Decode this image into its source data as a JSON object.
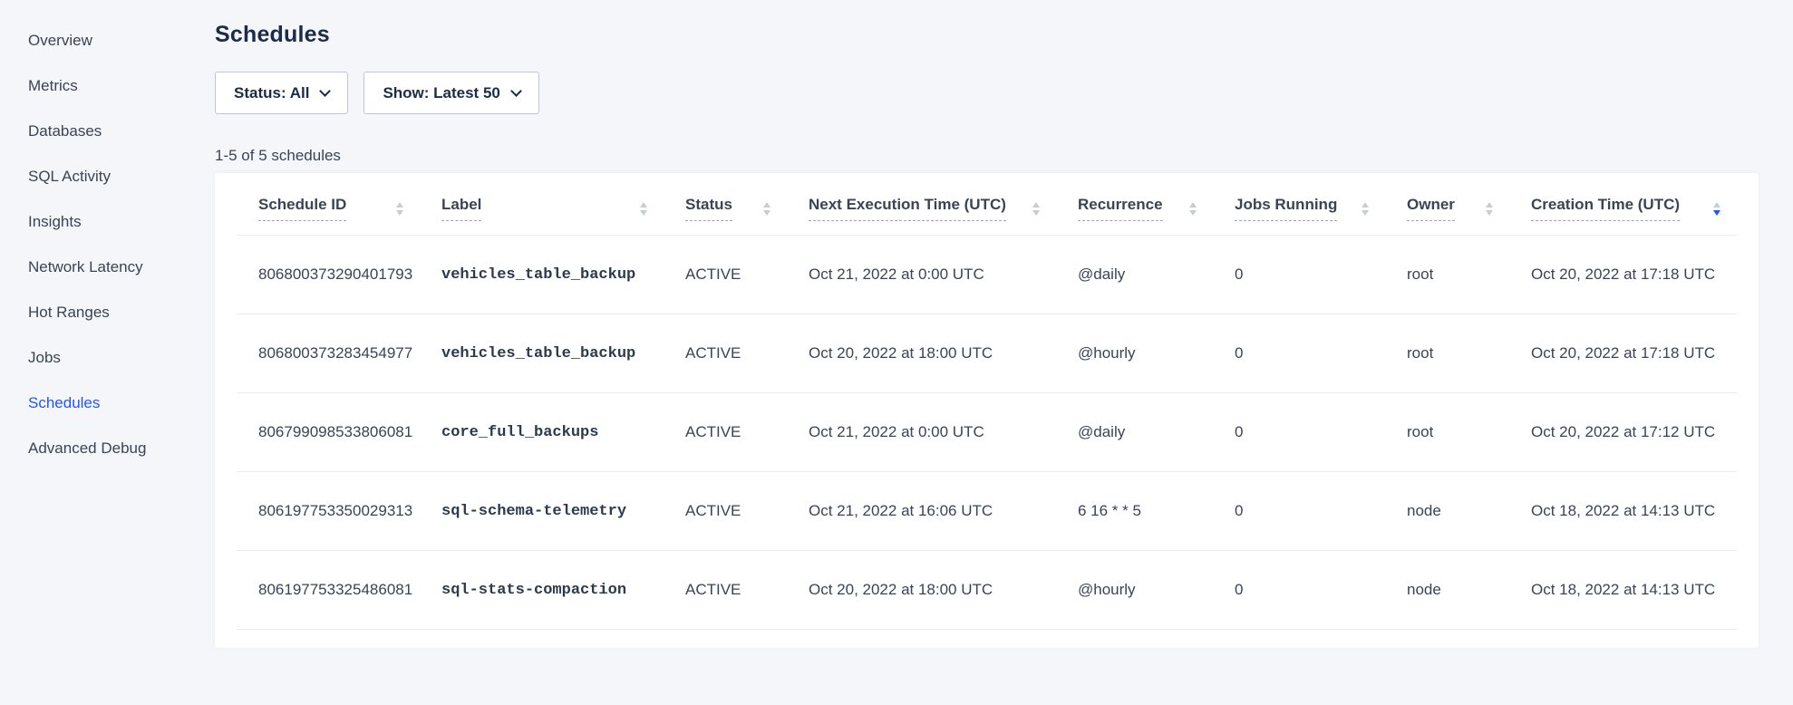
{
  "colors": {
    "accent_blue": "#2155ff",
    "background": "#f4f6fa",
    "panel": "#ffffff"
  },
  "sidebar": {
    "items": [
      {
        "label": "Overview",
        "active": false
      },
      {
        "label": "Metrics",
        "active": false
      },
      {
        "label": "Databases",
        "active": false
      },
      {
        "label": "SQL Activity",
        "active": false
      },
      {
        "label": "Insights",
        "active": false
      },
      {
        "label": "Network Latency",
        "active": false
      },
      {
        "label": "Hot Ranges",
        "active": false
      },
      {
        "label": "Jobs",
        "active": false
      },
      {
        "label": "Schedules",
        "active": true
      },
      {
        "label": "Advanced Debug",
        "active": false
      }
    ]
  },
  "page": {
    "title": "Schedules",
    "results_count": "1-5 of 5 schedules"
  },
  "filters": {
    "status_dropdown": "Status: All",
    "show_dropdown": "Show: Latest 50"
  },
  "table": {
    "columns": [
      {
        "label": "Schedule ID",
        "sort": "none"
      },
      {
        "label": "Label",
        "sort": "none"
      },
      {
        "label": "Status",
        "sort": "none"
      },
      {
        "label": "Next Execution Time (UTC)",
        "sort": "none"
      },
      {
        "label": "Recurrence",
        "sort": "none"
      },
      {
        "label": "Jobs Running",
        "sort": "none"
      },
      {
        "label": "Owner",
        "sort": "none"
      },
      {
        "label": "Creation Time (UTC)",
        "sort": "desc"
      }
    ],
    "rows": [
      {
        "schedule_id": "806800373290401793",
        "label": "vehicles_table_backup",
        "status": "ACTIVE",
        "next_execution_time": "Oct 21, 2022 at 0:00 UTC",
        "recurrence": "@daily",
        "jobs_running": "0",
        "owner": "root",
        "creation_time": "Oct 20, 2022 at 17:18 UTC"
      },
      {
        "schedule_id": "806800373283454977",
        "label": "vehicles_table_backup",
        "status": "ACTIVE",
        "next_execution_time": "Oct 20, 2022 at 18:00 UTC",
        "recurrence": "@hourly",
        "jobs_running": "0",
        "owner": "root",
        "creation_time": "Oct 20, 2022 at 17:18 UTC"
      },
      {
        "schedule_id": "806799098533806081",
        "label": "core_full_backups",
        "status": "ACTIVE",
        "next_execution_time": "Oct 21, 2022 at 0:00 UTC",
        "recurrence": "@daily",
        "jobs_running": "0",
        "owner": "root",
        "creation_time": "Oct 20, 2022 at 17:12 UTC"
      },
      {
        "schedule_id": "806197753350029313",
        "label": "sql-schema-telemetry",
        "status": "ACTIVE",
        "next_execution_time": "Oct 21, 2022 at 16:06 UTC",
        "recurrence": "6 16 * * 5",
        "jobs_running": "0",
        "owner": "node",
        "creation_time": "Oct 18, 2022 at 14:13 UTC"
      },
      {
        "schedule_id": "806197753325486081",
        "label": "sql-stats-compaction",
        "status": "ACTIVE",
        "next_execution_time": "Oct 20, 2022 at 18:00 UTC",
        "recurrence": "@hourly",
        "jobs_running": "0",
        "owner": "node",
        "creation_time": "Oct 18, 2022 at 14:13 UTC"
      }
    ]
  }
}
